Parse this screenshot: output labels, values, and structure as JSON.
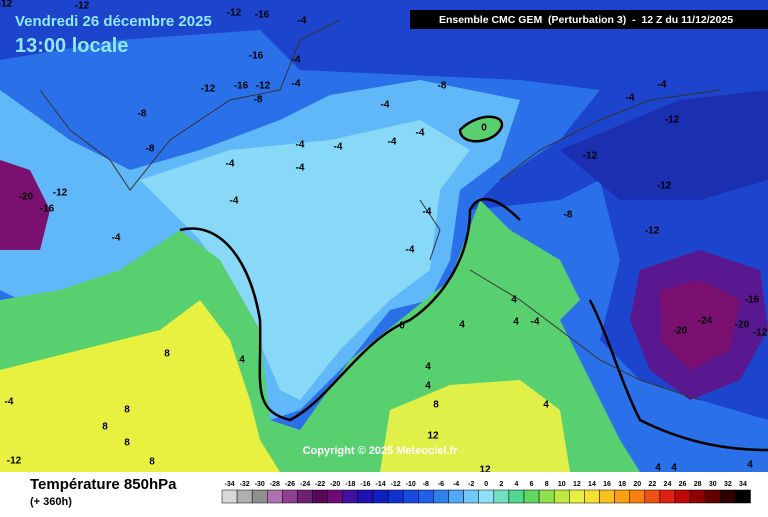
{
  "header": {
    "date": "Vendredi 26 décembre 2025",
    "time": "13:00 locale",
    "model": "Ensemble CMC GEM  (Perturbation 3)  -  12 Z du 11/12/2025"
  },
  "copyright": "Copyright © 2025 Meteociel.fr",
  "footer": {
    "title": "Température 850hPa",
    "lead": "(+ 360h)"
  },
  "contour_labels": [
    -12,
    -12,
    -12,
    -16,
    -4,
    -4,
    -16,
    -4,
    -12,
    -16,
    -12,
    -8,
    -8,
    -8,
    -4,
    -8,
    -4,
    -4,
    -4,
    -4,
    -4,
    -4,
    -4,
    0,
    -4,
    -4,
    -12,
    -12,
    -12,
    -8,
    -12,
    -4,
    -4,
    -4,
    -20,
    -12,
    -16,
    0,
    4,
    4,
    4,
    -4,
    -20,
    -16,
    -20,
    -12,
    4,
    8,
    -4,
    8,
    8,
    8,
    8,
    -12,
    4,
    4,
    8,
    4,
    12,
    12,
    4,
    4,
    4,
    -24
  ],
  "legend": {
    "ticks": [
      -34,
      -32,
      -30,
      -28,
      -26,
      -24,
      -22,
      -20,
      -18,
      -16,
      -14,
      -12,
      -10,
      -8,
      -6,
      -4,
      -2,
      0,
      2,
      4,
      6,
      8,
      10,
      12,
      14,
      16,
      18,
      20,
      22,
      24,
      26,
      28,
      30,
      32,
      34
    ],
    "colors": [
      "#d8d8d8",
      "#b0b0b0",
      "#909090",
      "#b070b0",
      "#904090",
      "#702070",
      "#580858",
      "#700878",
      "#4010a0",
      "#2010b0",
      "#1020c0",
      "#1030d0",
      "#1848e0",
      "#2060e8",
      "#3080f0",
      "#50a8f8",
      "#70c8f8",
      "#90e0f8",
      "#70e0c0",
      "#50d890",
      "#60d860",
      "#90e050",
      "#c0e840",
      "#e8f040",
      "#f8e030",
      "#f8c020",
      "#f8a010",
      "#f88010",
      "#f05010",
      "#e02010",
      "#c00808",
      "#900000",
      "#600000",
      "#300000",
      "#000000"
    ]
  }
}
